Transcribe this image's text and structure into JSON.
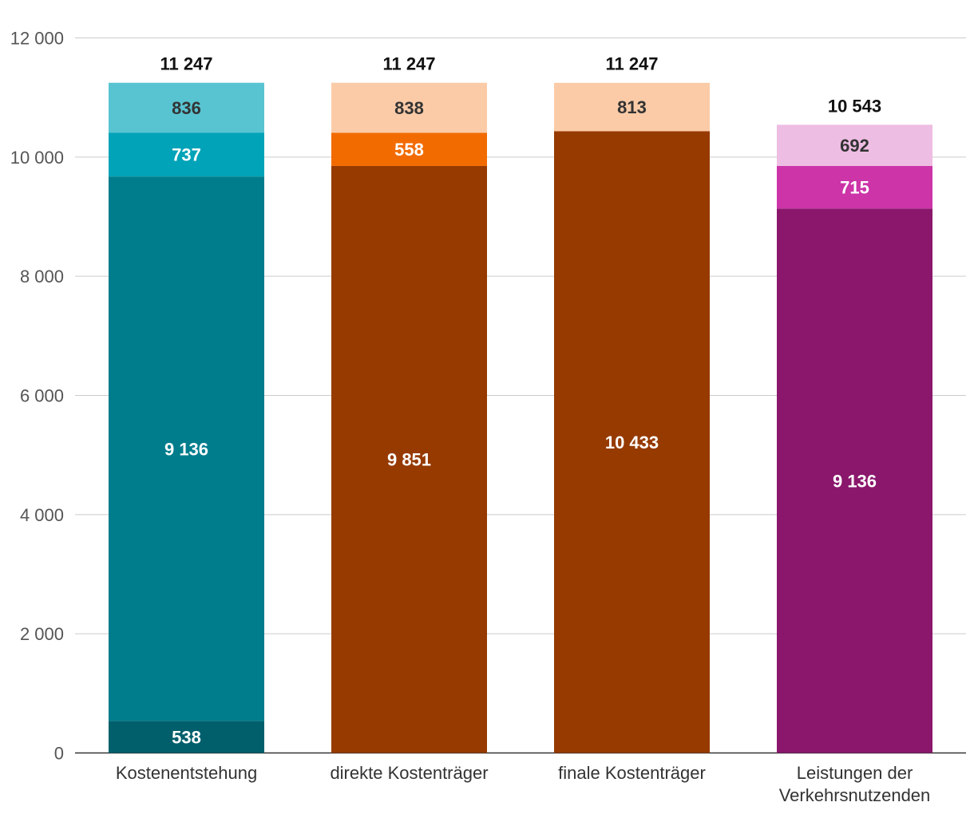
{
  "chart_data": {
    "type": "bar",
    "stacked": true,
    "title": "",
    "xlabel": "",
    "ylabel": "",
    "ylim": [
      0,
      12000
    ],
    "yticks": [
      0,
      2000,
      4000,
      6000,
      8000,
      10000,
      12000
    ],
    "ytick_labels": [
      "0",
      "2 000",
      "4 000",
      "6 000",
      "8 000",
      "10 000",
      "12 000"
    ],
    "grid": true,
    "bars": [
      {
        "category": [
          "Kostenentstehung"
        ],
        "total": 11247,
        "total_label": "11 247",
        "segments": [
          {
            "value": 538,
            "label": "538",
            "color": "#005F6B",
            "text_color": "#ffffff"
          },
          {
            "value": 9136,
            "label": "9 136",
            "color": "#007D8C",
            "text_color": "#ffffff"
          },
          {
            "value": 737,
            "label": "737",
            "color": "#00A3B8",
            "text_color": "#ffffff"
          },
          {
            "value": 836,
            "label": "836",
            "color": "#59C4D1",
            "text_color": "#333333"
          }
        ]
      },
      {
        "category": [
          "direkte Kostenträger"
        ],
        "total": 11247,
        "total_label": "11 247",
        "segments": [
          {
            "value": 9851,
            "label": "9 851",
            "color": "#963A00",
            "text_color": "#ffffff"
          },
          {
            "value": 558,
            "label": "558",
            "color": "#F26B00",
            "text_color": "#ffffff"
          },
          {
            "value": 838,
            "label": "838",
            "color": "#FBCBA7",
            "text_color": "#333333"
          }
        ]
      },
      {
        "category": [
          "finale Kostenträger"
        ],
        "total": 11247,
        "total_label": "11 247",
        "segments": [
          {
            "value": 10433,
            "label": "10 433",
            "color": "#963A00",
            "text_color": "#ffffff"
          },
          {
            "value": 813,
            "label": "813",
            "color": "#FBCBA7",
            "text_color": "#333333"
          }
        ]
      },
      {
        "category": [
          "Leistungen der",
          "Verkehrsnutzenden"
        ],
        "total": 10543,
        "total_label": "10 543",
        "segments": [
          {
            "value": 9136,
            "label": "9 136",
            "color": "#8A176C",
            "text_color": "#ffffff"
          },
          {
            "value": 715,
            "label": "715",
            "color": "#CC34A8",
            "text_color": "#ffffff"
          },
          {
            "value": 692,
            "label": "692",
            "color": "#EEBDE3",
            "text_color": "#333333"
          }
        ]
      }
    ]
  }
}
